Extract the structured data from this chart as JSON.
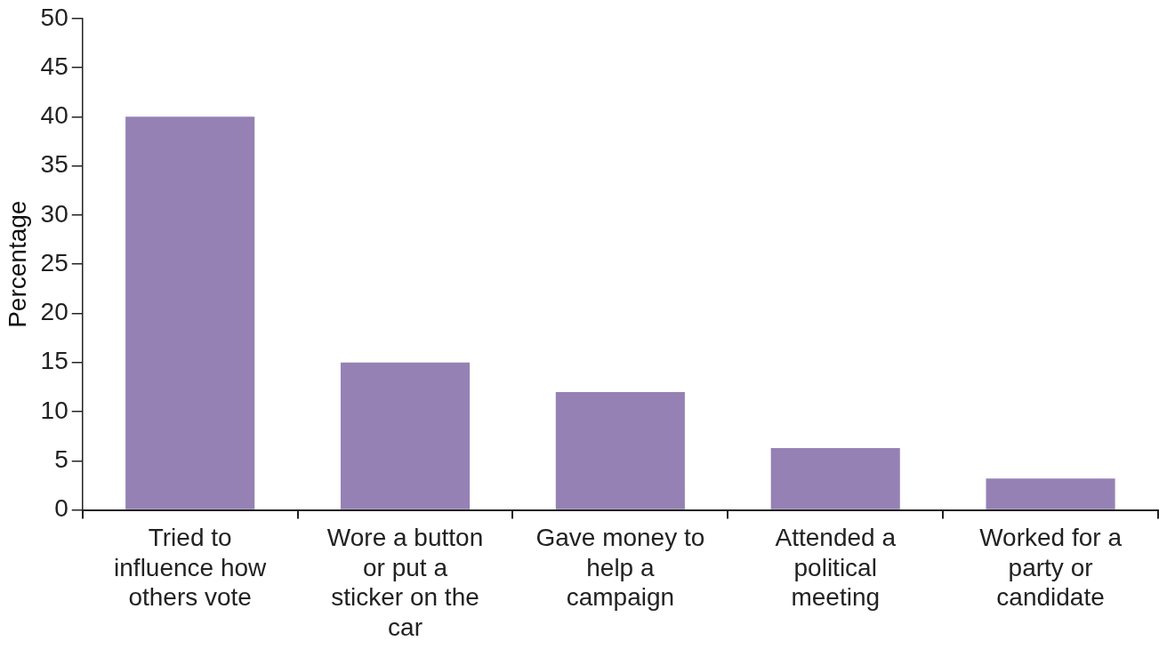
{
  "chart_data": {
    "type": "bar",
    "ylabel": "Percentage",
    "categories": [
      "Tried to influence how others vote",
      "Wore a button or put a sticker on the car",
      "Gave money to help a campaign",
      "Attended a political meeting",
      "Worked for a party or candidate"
    ],
    "values": [
      40,
      15,
      12,
      6.3,
      3.2
    ],
    "color": "#9581b4",
    "ylim": [
      0,
      50
    ],
    "yticks": [
      0,
      5,
      10,
      15,
      20,
      25,
      30,
      35,
      40,
      45,
      50
    ],
    "grid": false,
    "legend": false
  }
}
